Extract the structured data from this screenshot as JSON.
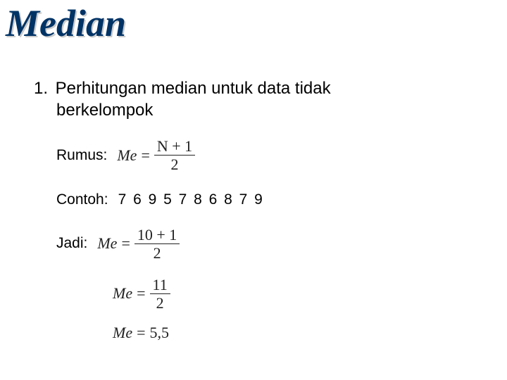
{
  "title": "Median",
  "item_number": "1.",
  "heading_line1": "Perhitungan median untuk data tidak",
  "heading_line2": "berkelompok",
  "rumus_label": "Rumus:",
  "contoh_label": "Contoh:",
  "jadi_label": "Jadi:",
  "data_values": "7   6   9   5   7   8   6   8   7   9",
  "formula": {
    "lhs": "Me",
    "eq": "=",
    "numerator": "N + 1",
    "denominator": "2"
  },
  "calc1": {
    "lhs": "Me",
    "eq": "=",
    "numerator": "10 + 1",
    "denominator": "2"
  },
  "calc2": {
    "lhs": "Me",
    "eq": "=",
    "numerator": "11",
    "denominator": "2"
  },
  "result": {
    "lhs": "Me",
    "eq": "=",
    "value": "5,5"
  },
  "colors": {
    "title_color": "#003366",
    "text_color": "#000000",
    "bg": "#ffffff"
  },
  "fonts": {
    "title_family": "Times New Roman",
    "title_size_pt": 40,
    "body_family": "Arial",
    "body_size_pt": 18
  }
}
